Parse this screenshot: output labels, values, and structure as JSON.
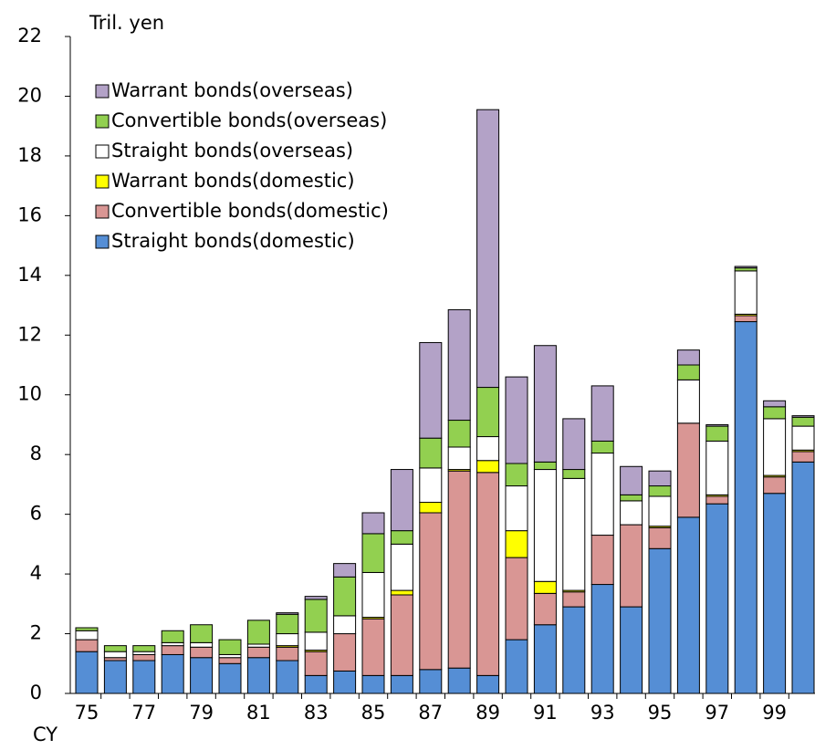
{
  "chart_data": {
    "type": "stacked-bar",
    "title": "Tril. yen",
    "x_label": "CY",
    "categories": [
      "75",
      null,
      "77",
      null,
      "79",
      null,
      "81",
      null,
      "83",
      null,
      "85",
      null,
      "87",
      null,
      "89",
      null,
      "91",
      null,
      "93",
      null,
      "95",
      null,
      "97",
      null,
      "99",
      null
    ],
    "ylim": [
      0,
      22
    ],
    "yticks": [
      0,
      2,
      4,
      6,
      8,
      10,
      12,
      14,
      16,
      18,
      20,
      22
    ],
    "series": [
      {
        "name": "Straight bonds(domestic)",
        "color": "#558ed5",
        "values": [
          1.4,
          1.1,
          1.1,
          1.3,
          1.2,
          1.0,
          1.2,
          1.1,
          0.6,
          0.75,
          0.6,
          0.6,
          0.8,
          0.85,
          0.6,
          1.8,
          2.3,
          2.9,
          3.65,
          2.9,
          4.85,
          5.9,
          6.35,
          12.45,
          6.7,
          7.75
        ]
      },
      {
        "name": "Convertible bonds(domestic)",
        "color": "#d99694",
        "values": [
          0.4,
          0.1,
          0.2,
          0.3,
          0.35,
          0.2,
          0.35,
          0.45,
          0.8,
          1.25,
          1.9,
          2.7,
          5.25,
          6.6,
          6.8,
          2.75,
          1.05,
          0.5,
          1.65,
          2.75,
          0.7,
          3.15,
          0.25,
          0.2,
          0.55,
          0.35
        ]
      },
      {
        "name": "Warrant bonds(domestic)",
        "color": "#ffff00",
        "values": [
          0,
          0,
          0,
          0,
          0,
          0,
          0,
          0.05,
          0.05,
          0,
          0.05,
          0.15,
          0.35,
          0.05,
          0.4,
          0.9,
          0.4,
          0.05,
          0,
          0,
          0.05,
          0,
          0.05,
          0.05,
          0.05,
          0.05
        ]
      },
      {
        "name": "Straight bonds(overseas)",
        "color": "#ffffff",
        "values": [
          0.3,
          0.2,
          0.1,
          0.1,
          0.15,
          0.1,
          0.1,
          0.4,
          0.6,
          0.6,
          1.5,
          1.55,
          1.15,
          0.75,
          0.8,
          1.5,
          3.75,
          3.75,
          2.75,
          0.8,
          1.0,
          1.45,
          1.8,
          1.45,
          1.9,
          0.8
        ]
      },
      {
        "name": "Convertible bonds(overseas)",
        "color": "#92d050",
        "values": [
          0.1,
          0.2,
          0.2,
          0.4,
          0.6,
          0.5,
          0.8,
          0.65,
          1.1,
          1.3,
          1.3,
          0.45,
          1.0,
          0.9,
          1.65,
          0.75,
          0.25,
          0.3,
          0.4,
          0.2,
          0.35,
          0.5,
          0.5,
          0.1,
          0.4,
          0.3
        ]
      },
      {
        "name": "Warrant bonds(overseas)",
        "color": "#b3a2c7",
        "values": [
          0,
          0,
          0,
          0,
          0,
          0,
          0,
          0.05,
          0.1,
          0.45,
          0.7,
          2.05,
          3.2,
          3.7,
          9.3,
          2.9,
          3.9,
          1.7,
          1.85,
          0.95,
          0.5,
          0.5,
          0.05,
          0.05,
          0.2,
          0.05
        ]
      }
    ]
  }
}
